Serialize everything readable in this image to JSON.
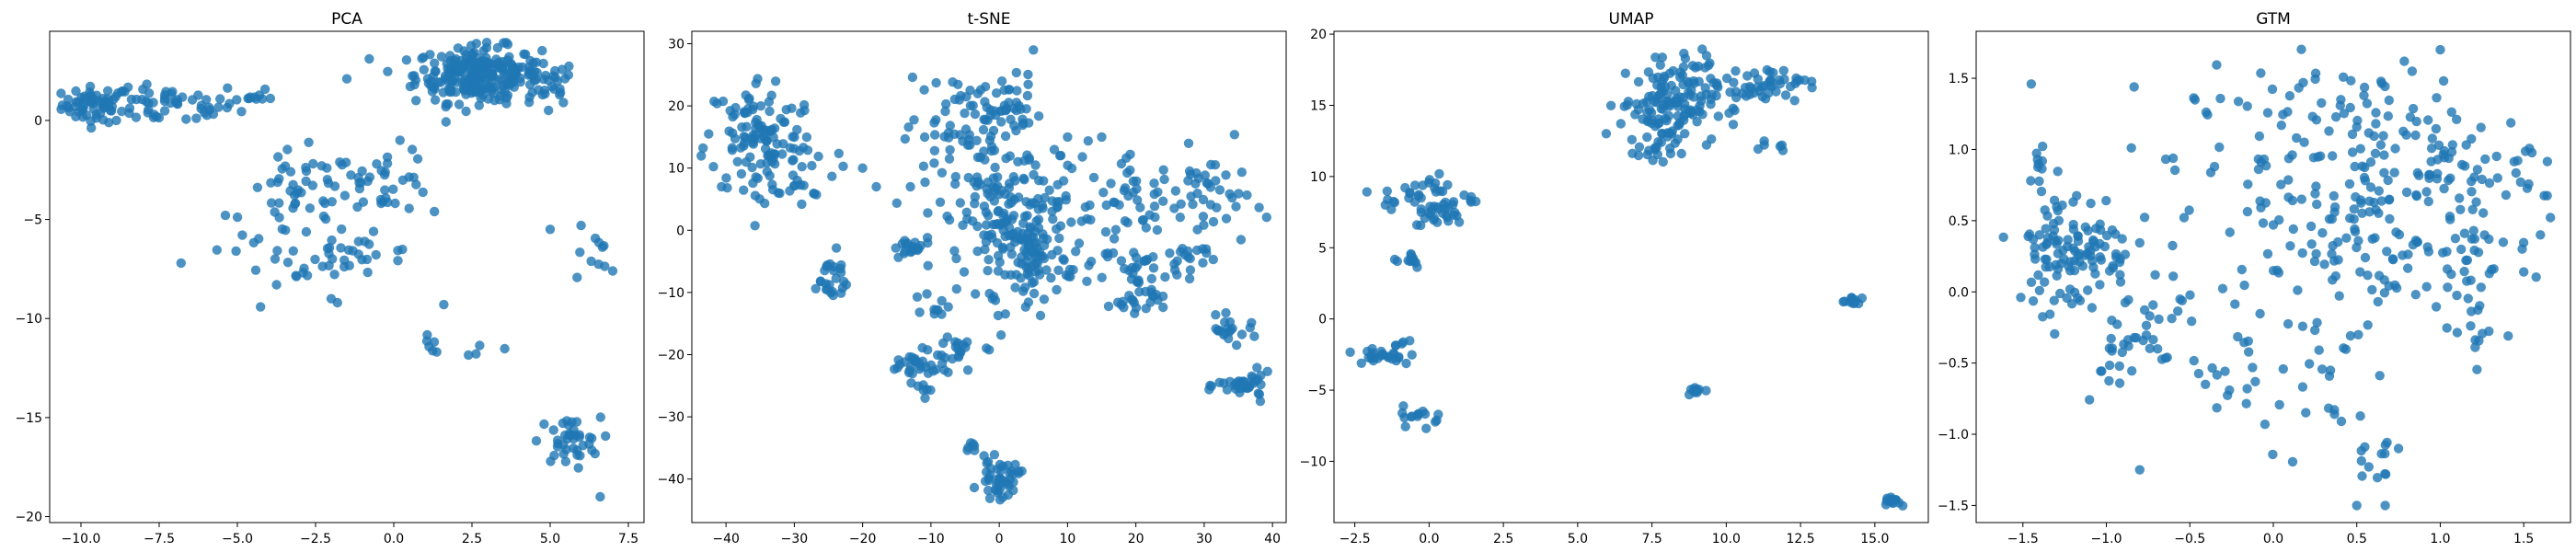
{
  "colors": {
    "points": "#1f77b4",
    "axes": "#000000",
    "background": "#ffffff"
  },
  "chart_data": [
    {
      "type": "scatter",
      "title": "PCA",
      "xlabel": "",
      "ylabel": "",
      "xlim": [
        -11.0,
        8.0
      ],
      "ylim": [
        -20.3,
        4.5
      ],
      "xticks": [
        -10.0,
        -7.5,
        -5.0,
        -2.5,
        0.0,
        2.5,
        5.0,
        7.5
      ],
      "xtick_labels": [
        "−10.0",
        "−7.5",
        "−5.0",
        "−2.5",
        "0.0",
        "2.5",
        "5.0",
        "7.5"
      ],
      "yticks": [
        0,
        -5,
        -10,
        -15,
        -20
      ],
      "ytick_labels": [
        "0",
        "−5",
        "−10",
        "−15",
        "−20"
      ],
      "clusters": [
        {
          "cx": -9.5,
          "cy": 0.8,
          "sx": 0.55,
          "sy": 0.45,
          "n": 60
        },
        {
          "cx": -7.2,
          "cy": 0.7,
          "sx": 1.1,
          "sy": 0.45,
          "n": 50
        },
        {
          "cx": -4.7,
          "cy": 1.2,
          "sx": 0.4,
          "sy": 0.4,
          "n": 12
        },
        {
          "cx": 2.7,
          "cy": 2.3,
          "sx": 1.0,
          "sy": 0.7,
          "n": 260
        },
        {
          "cx": 4.8,
          "cy": 1.8,
          "sx": 0.5,
          "sy": 0.6,
          "n": 25
        },
        {
          "cx": -3.0,
          "cy": -3.8,
          "sx": 0.9,
          "sy": 1.1,
          "n": 45
        },
        {
          "cx": -0.3,
          "cy": -3.0,
          "sx": 0.8,
          "sy": 0.8,
          "n": 35
        },
        {
          "cx": -1.3,
          "cy": -6.8,
          "sx": 1.1,
          "sy": 0.5,
          "n": 30
        },
        {
          "cx": -3.8,
          "cy": -6.6,
          "sx": 0.8,
          "sy": 0.7,
          "n": 15
        },
        {
          "cx": 1.2,
          "cy": -11.5,
          "sx": 0.15,
          "sy": 0.3,
          "n": 6
        },
        {
          "cx": 2.6,
          "cy": -12.0,
          "sx": 0.3,
          "sy": 0.6,
          "n": 4
        },
        {
          "cx": 6.2,
          "cy": -6.8,
          "sx": 0.4,
          "sy": 1.0,
          "n": 10
        },
        {
          "cx": 5.6,
          "cy": -16.2,
          "sx": 0.5,
          "sy": 0.6,
          "n": 40
        }
      ],
      "points": [
        [
          -6.8,
          -7.2
        ],
        [
          -1.8,
          -9.2
        ],
        [
          1.6,
          -9.3
        ],
        [
          5.0,
          -5.5
        ],
        [
          7.0,
          -7.6
        ],
        [
          6.6,
          -19.0
        ],
        [
          5.3,
          1.3
        ],
        [
          -2.0,
          -9.0
        ],
        [
          -1.5,
          2.1
        ],
        [
          0.2,
          -1.0
        ],
        [
          1.3,
          -4.6
        ]
      ]
    },
    {
      "type": "scatter",
      "title": "t-SNE",
      "xlabel": "",
      "ylabel": "",
      "xlim": [
        -45.0,
        42.0
      ],
      "ylim": [
        -47.0,
        32.0
      ],
      "xticks": [
        -40,
        -30,
        -20,
        -10,
        0,
        10,
        20,
        30,
        40
      ],
      "xtick_labels": [
        "−40",
        "−30",
        "−20",
        "−10",
        "0",
        "10",
        "20",
        "30",
        "40"
      ],
      "yticks": [
        30,
        20,
        10,
        0,
        -10,
        -20,
        -30,
        -40
      ],
      "ytick_labels": [
        "30",
        "20",
        "10",
        "0",
        "−10",
        "−20",
        "−30",
        "−40"
      ],
      "clusters": [
        {
          "cx": -35.0,
          "cy": 15.0,
          "sx": 4.0,
          "sy": 5.0,
          "n": 110
        },
        {
          "cx": -30.0,
          "cy": 10.0,
          "sx": 3.0,
          "sy": 3.0,
          "n": 30
        },
        {
          "cx": -25.0,
          "cy": -8.0,
          "sx": 1.8,
          "sy": 2.2,
          "n": 25
        },
        {
          "cx": -6.0,
          "cy": 15.0,
          "sx": 4.0,
          "sy": 5.0,
          "n": 60
        },
        {
          "cx": 0.0,
          "cy": 20.0,
          "sx": 3.0,
          "sy": 2.5,
          "n": 40
        },
        {
          "cx": 3.0,
          "cy": 2.0,
          "sx": 6.0,
          "sy": 6.0,
          "n": 180
        },
        {
          "cx": 5.0,
          "cy": -5.0,
          "sx": 3.0,
          "sy": 3.0,
          "n": 60
        },
        {
          "cx": 20.0,
          "cy": 5.0,
          "sx": 3.5,
          "sy": 3.0,
          "n": 40
        },
        {
          "cx": 21.0,
          "cy": -7.0,
          "sx": 2.5,
          "sy": 2.5,
          "n": 30
        },
        {
          "cx": 20.0,
          "cy": -11.0,
          "sx": 2.0,
          "sy": 1.0,
          "n": 20
        },
        {
          "cx": 31.0,
          "cy": 5.0,
          "sx": 3.0,
          "sy": 4.0,
          "n": 40
        },
        {
          "cx": 28.0,
          "cy": -4.0,
          "sx": 2.0,
          "sy": 1.0,
          "n": 15
        },
        {
          "cx": 34.0,
          "cy": -16.0,
          "sx": 2.0,
          "sy": 1.0,
          "n": 20
        },
        {
          "cx": 36.0,
          "cy": -25.0,
          "sx": 2.0,
          "sy": 1.0,
          "n": 35
        },
        {
          "cx": -13.0,
          "cy": -3.0,
          "sx": 1.5,
          "sy": 1.0,
          "n": 20
        },
        {
          "cx": -12.0,
          "cy": -22.0,
          "sx": 2.5,
          "sy": 1.2,
          "n": 30
        },
        {
          "cx": -6.0,
          "cy": -19.0,
          "sx": 2.0,
          "sy": 1.2,
          "n": 20
        },
        {
          "cx": 0.0,
          "cy": -40.0,
          "sx": 1.5,
          "sy": 1.5,
          "n": 45
        },
        {
          "cx": -4.0,
          "cy": -34.5,
          "sx": 0.5,
          "sy": 0.6,
          "n": 6
        },
        {
          "cx": -9.0,
          "cy": -12.0,
          "sx": 1.0,
          "sy": 1.0,
          "n": 10
        },
        {
          "cx": -11.0,
          "cy": -26.0,
          "sx": 0.5,
          "sy": 0.8,
          "n": 6
        }
      ],
      "points": [
        [
          -20.0,
          10.0
        ],
        [
          -18.0,
          7.0
        ],
        [
          -13.0,
          7.0
        ],
        [
          10.0,
          15.0
        ],
        [
          15.0,
          15.0
        ],
        [
          5.0,
          29.0
        ],
        [
          -1.0,
          -11.0
        ]
      ]
    },
    {
      "type": "scatter",
      "title": "UMAP",
      "xlabel": "",
      "ylabel": "",
      "xlim": [
        -3.2,
        16.8
      ],
      "ylim": [
        -14.3,
        20.2
      ],
      "xticks": [
        -2.5,
        0.0,
        2.5,
        5.0,
        7.5,
        10.0,
        12.5,
        15.0
      ],
      "xtick_labels": [
        "−2.5",
        "0.0",
        "2.5",
        "5.0",
        "7.5",
        "10.0",
        "12.5",
        "15.0"
      ],
      "yticks": [
        20,
        15,
        10,
        5,
        0,
        -5,
        -10
      ],
      "ytick_labels": [
        "20",
        "15",
        "10",
        "5",
        "0",
        "−5",
        "−10"
      ],
      "clusters": [
        {
          "cx": 8.0,
          "cy": 15.0,
          "sx": 0.8,
          "sy": 1.3,
          "n": 120
        },
        {
          "cx": 7.8,
          "cy": 11.8,
          "sx": 0.4,
          "sy": 0.6,
          "n": 20
        },
        {
          "cx": 10.8,
          "cy": 16.3,
          "sx": 1.0,
          "sy": 0.7,
          "n": 40
        },
        {
          "cx": 12.2,
          "cy": 16.8,
          "sx": 0.3,
          "sy": 0.3,
          "n": 12
        },
        {
          "cx": 11.5,
          "cy": 12.2,
          "sx": 0.3,
          "sy": 0.2,
          "n": 6
        },
        {
          "cx": 8.6,
          "cy": 18.0,
          "sx": 0.6,
          "sy": 0.5,
          "n": 15
        },
        {
          "cx": 0.0,
          "cy": 8.5,
          "sx": 0.8,
          "sy": 0.8,
          "n": 45
        },
        {
          "cx": 0.5,
          "cy": 7.2,
          "sx": 0.4,
          "sy": 0.4,
          "n": 15
        },
        {
          "cx": -0.8,
          "cy": 4.3,
          "sx": 0.35,
          "sy": 0.35,
          "n": 12
        },
        {
          "cx": -1.6,
          "cy": -2.6,
          "sx": 0.6,
          "sy": 0.3,
          "n": 25
        },
        {
          "cx": -0.9,
          "cy": -1.6,
          "sx": 0.2,
          "sy": 0.2,
          "n": 5
        },
        {
          "cx": -0.2,
          "cy": -6.8,
          "sx": 0.35,
          "sy": 0.35,
          "n": 15
        },
        {
          "cx": 14.3,
          "cy": 1.2,
          "sx": 0.25,
          "sy": 0.2,
          "n": 12
        },
        {
          "cx": 9.0,
          "cy": -5.0,
          "sx": 0.15,
          "sy": 0.15,
          "n": 10
        },
        {
          "cx": 15.6,
          "cy": -12.8,
          "sx": 0.12,
          "sy": 0.15,
          "n": 15
        }
      ],
      "points": []
    },
    {
      "type": "scatter",
      "title": "GTM",
      "xlabel": "",
      "ylabel": "",
      "xlim": [
        -1.78,
        1.78
      ],
      "ylim": [
        -1.62,
        1.83
      ],
      "xticks": [
        -1.5,
        -1.0,
        -0.5,
        0.0,
        0.5,
        1.0,
        1.5
      ],
      "xtick_labels": [
        "−1.5",
        "−1.0",
        "−0.5",
        "0.0",
        "0.5",
        "1.0",
        "1.5"
      ],
      "yticks": [
        1.5,
        1.0,
        0.5,
        0.0,
        -0.5,
        -1.0,
        -1.5
      ],
      "ytick_labels": [
        "1.5",
        "1.0",
        "0.5",
        "0.0",
        "−0.5",
        "−1.0",
        "−1.5"
      ],
      "clusters": [
        {
          "cx": -1.2,
          "cy": 0.3,
          "sx": 0.18,
          "sy": 0.22,
          "n": 120
        },
        {
          "cx": -1.4,
          "cy": 0.9,
          "sx": 0.03,
          "sy": 0.08,
          "n": 8
        },
        {
          "cx": -0.95,
          "cy": -0.4,
          "sx": 0.1,
          "sy": 0.15,
          "n": 20
        },
        {
          "cx": -0.7,
          "cy": -0.2,
          "sx": 0.08,
          "sy": 0.2,
          "n": 20
        },
        {
          "cx": 0.5,
          "cy": 0.9,
          "sx": 0.55,
          "sy": 0.35,
          "n": 200
        },
        {
          "cx": 0.5,
          "cy": 0.2,
          "sx": 0.4,
          "sy": 0.2,
          "n": 60
        },
        {
          "cx": 0.2,
          "cy": -0.5,
          "sx": 0.25,
          "sy": 0.3,
          "n": 30
        },
        {
          "cx": 0.6,
          "cy": -1.2,
          "sx": 0.1,
          "sy": 0.12,
          "n": 12
        },
        {
          "cx": 1.15,
          "cy": 0.0,
          "sx": 0.1,
          "sy": 0.3,
          "n": 25
        },
        {
          "cx": 1.1,
          "cy": 0.6,
          "sx": 0.3,
          "sy": 0.3,
          "n": 30
        },
        {
          "cx": -0.25,
          "cy": -0.55,
          "sx": 0.12,
          "sy": 0.25,
          "n": 15
        }
      ],
      "points": [
        [
          -1.45,
          1.46
        ],
        [
          -0.8,
          -1.25
        ],
        [
          0.5,
          -1.5
        ],
        [
          0.67,
          -1.5
        ],
        [
          1.0,
          1.7
        ],
        [
          1.5,
          0.14
        ],
        [
          1.6,
          0.4
        ],
        [
          -0.05,
          -0.93
        ],
        [
          0.75,
          -1.1
        ]
      ]
    }
  ]
}
